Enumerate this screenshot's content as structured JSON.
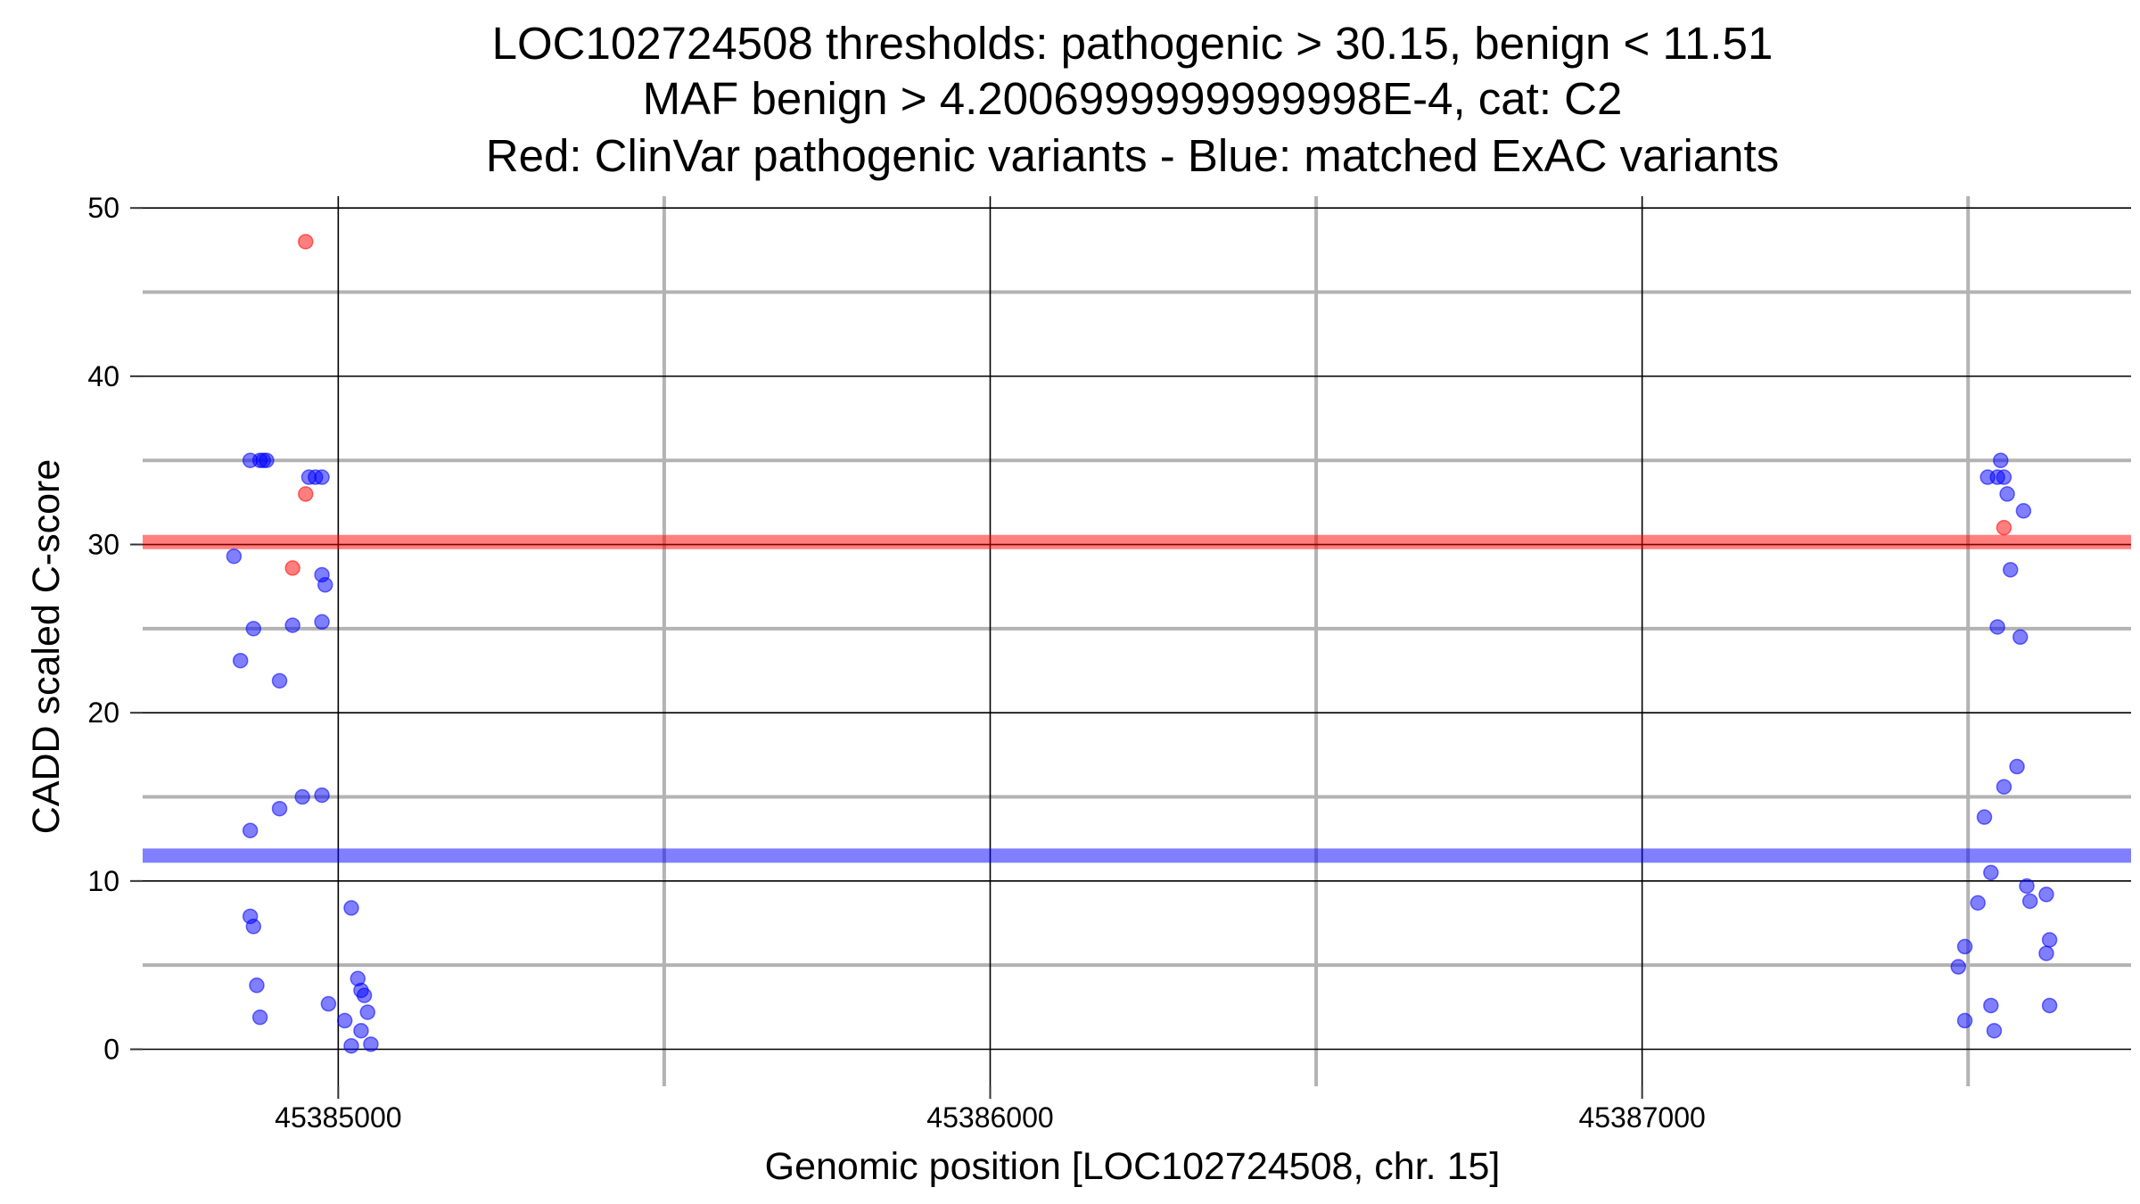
{
  "chart_data": {
    "type": "scatter",
    "title_lines": [
      "LOC102724508 thresholds: pathogenic > 30.15, benign < 11.51",
      "MAF benign > 4.2006999999999998E-4, cat: C2",
      "Red: ClinVar pathogenic variants - Blue: matched ExAC variants"
    ],
    "xlabel": "Genomic position [LOC102724508, chr. 15]",
    "ylabel": "CADD scaled C-score",
    "xlim": [
      45384700,
      45387750
    ],
    "ylim": [
      -2.2,
      50.7
    ],
    "x_ticks": [
      45385000,
      45386000,
      45387000
    ],
    "x_minor_gridlines": [
      45385500,
      45386500,
      45387500
    ],
    "y_ticks": [
      0,
      10,
      20,
      30,
      40,
      50
    ],
    "y_minor_gridlines": [
      5,
      15,
      25,
      35,
      45
    ],
    "grid": true,
    "thresholds": [
      {
        "label": "pathogenic",
        "value": 30.15,
        "color": "#ff0000"
      },
      {
        "label": "benign",
        "value": 11.51,
        "color": "#0000ff"
      }
    ],
    "colors": {
      "pathogenic": "#ff0000",
      "benign": "#0000ff"
    },
    "series": [
      {
        "color": "#ff0000",
        "points": [
          [
            45384950,
            48.0
          ],
          [
            45384950,
            33.0
          ],
          [
            45384930,
            28.6
          ],
          [
            45387555,
            31.0
          ]
        ]
      },
      {
        "color": "#0000ff",
        "points": [
          [
            45384840,
            29.3
          ],
          [
            45384850,
            23.1
          ],
          [
            45384865,
            35.0
          ],
          [
            45384880,
            35.0
          ],
          [
            45384890,
            35.0
          ],
          [
            45384885,
            35.0
          ],
          [
            45384955,
            34.0
          ],
          [
            45384965,
            34.0
          ],
          [
            45384975,
            34.0
          ],
          [
            45384870,
            25.0
          ],
          [
            45384930,
            25.2
          ],
          [
            45384975,
            28.2
          ],
          [
            45384980,
            27.6
          ],
          [
            45384975,
            25.4
          ],
          [
            45384910,
            21.9
          ],
          [
            45384865,
            13.0
          ],
          [
            45384910,
            14.3
          ],
          [
            45384945,
            15.0
          ],
          [
            45384975,
            15.1
          ],
          [
            45384865,
            7.9
          ],
          [
            45384870,
            7.3
          ],
          [
            45384875,
            3.8
          ],
          [
            45384880,
            1.9
          ],
          [
            45385020,
            8.4
          ],
          [
            45385030,
            4.2
          ],
          [
            45385035,
            3.5
          ],
          [
            45385040,
            3.2
          ],
          [
            45384985,
            2.7
          ],
          [
            45385010,
            1.7
          ],
          [
            45385045,
            2.2
          ],
          [
            45385035,
            1.1
          ],
          [
            45385050,
            0.3
          ],
          [
            45385020,
            0.2
          ],
          [
            45387530,
            34.0
          ],
          [
            45387545,
            34.0
          ],
          [
            45387555,
            34.0
          ],
          [
            45387550,
            35.0
          ],
          [
            45387560,
            33.0
          ],
          [
            45387585,
            32.0
          ],
          [
            45387565,
            28.5
          ],
          [
            45387545,
            25.1
          ],
          [
            45387580,
            24.5
          ],
          [
            45387575,
            16.8
          ],
          [
            45387555,
            15.6
          ],
          [
            45387525,
            13.8
          ],
          [
            45387535,
            10.5
          ],
          [
            45387515,
            8.7
          ],
          [
            45387590,
            9.7
          ],
          [
            45387595,
            8.8
          ],
          [
            45387620,
            9.2
          ],
          [
            45387495,
            6.1
          ],
          [
            45387485,
            4.9
          ],
          [
            45387625,
            6.5
          ],
          [
            45387620,
            5.7
          ],
          [
            45387535,
            2.6
          ],
          [
            45387625,
            2.6
          ],
          [
            45387495,
            1.7
          ],
          [
            45387540,
            1.1
          ]
        ]
      }
    ]
  }
}
